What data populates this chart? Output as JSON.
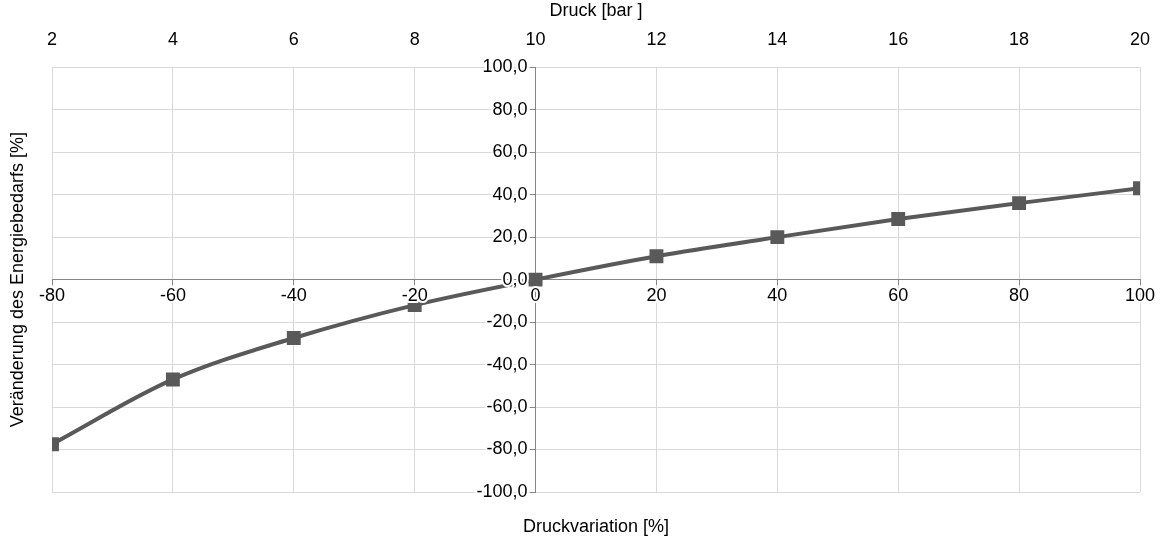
{
  "chart_data": {
    "type": "line",
    "xlabel": "Druckvariation [%]",
    "ylabel": "Veränderung des  Energiebedarfs [%]",
    "x2label": "Druck [bar ]",
    "x": [
      -80,
      -60,
      -40,
      -20,
      0,
      20,
      40,
      60,
      80,
      100
    ],
    "series": [
      {
        "color": "#595959",
        "values": [
          -77.5,
          -47,
          -27.5,
          -12,
          0,
          11,
          20,
          28.5,
          36,
          43
        ]
      }
    ],
    "xlim": [
      -80,
      100
    ],
    "xticks": [
      -80,
      -60,
      -40,
      -20,
      0,
      20,
      40,
      60,
      80,
      100
    ],
    "x2lim": [
      2,
      20
    ],
    "x2ticks": [
      2,
      4,
      6,
      8,
      10,
      12,
      14,
      16,
      18,
      20
    ],
    "ylim": [
      -100,
      100
    ],
    "yticks": [
      {
        "value": -100,
        "label": "-100,0"
      },
      {
        "value": -80,
        "label": "-80,0"
      },
      {
        "value": -60,
        "label": "-60,0"
      },
      {
        "value": -40,
        "label": "-40,0"
      },
      {
        "value": -20,
        "label": "-20,0"
      },
      {
        "value": 0,
        "label": "0,0"
      },
      {
        "value": 20,
        "label": "20,0"
      },
      {
        "value": 40,
        "label": "40,0"
      },
      {
        "value": 60,
        "label": "60,0"
      },
      {
        "value": 80,
        "label": "80,0"
      },
      {
        "value": 100,
        "label": "100,0"
      }
    ],
    "grid": true,
    "legend": false,
    "marker": "square",
    "line_style": "solid"
  }
}
